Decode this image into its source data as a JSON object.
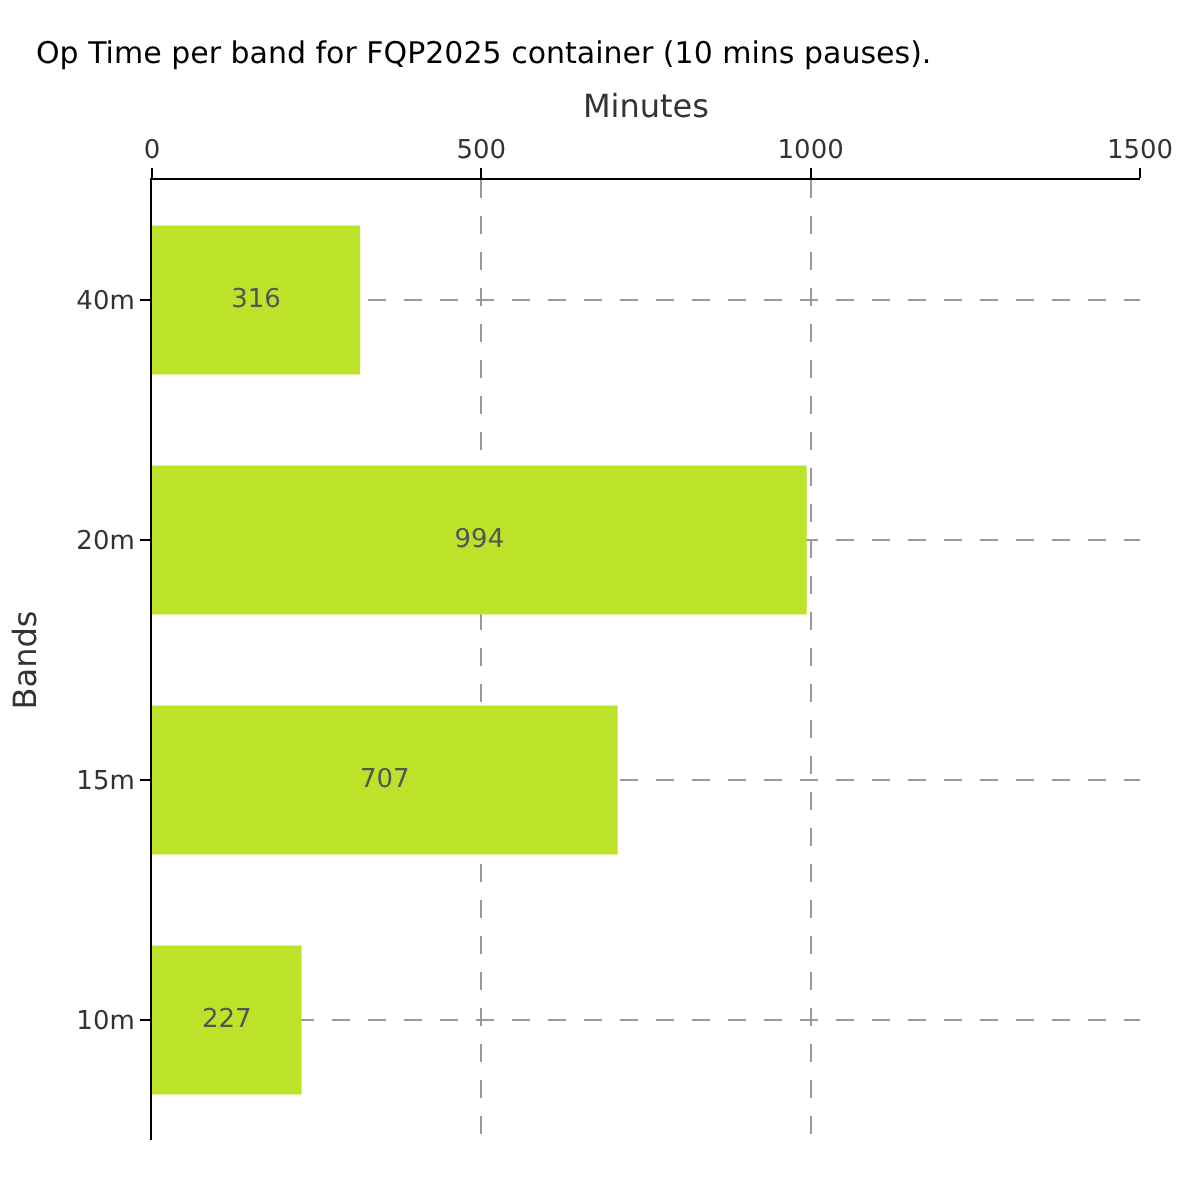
{
  "chart_data": {
    "type": "bar",
    "orientation": "horizontal",
    "title": "Op Time per band for FQP2025 container (10 mins pauses).",
    "xlabel": "Minutes",
    "ylabel": "Bands",
    "categories": [
      "40m",
      "20m",
      "15m",
      "10m"
    ],
    "values": [
      316,
      994,
      707,
      227
    ],
    "color": "#bde22a",
    "xlim": [
      0,
      1500
    ],
    "xticks": [
      0,
      500,
      1000,
      1500
    ],
    "grid": true,
    "data_labels": true
  }
}
